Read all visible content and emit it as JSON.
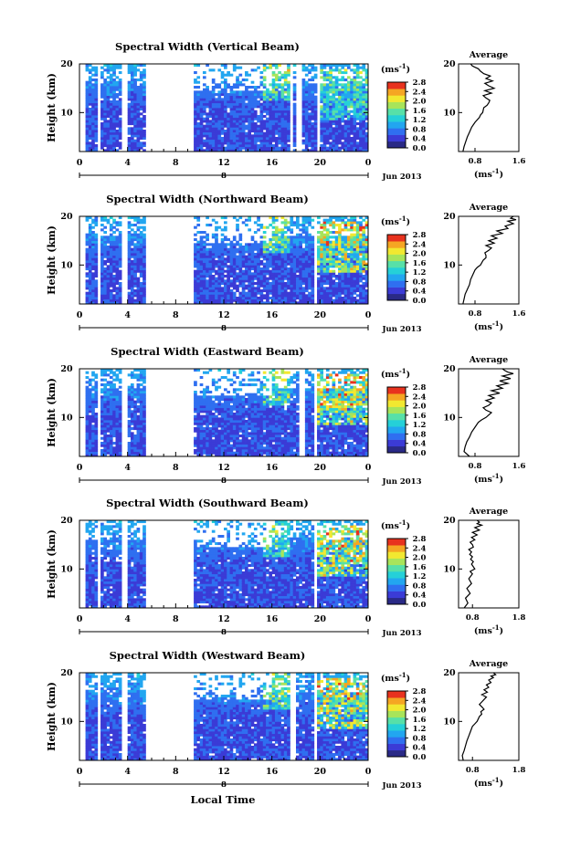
{
  "figure": {
    "xaxis_title": "Local Time",
    "colorbar_unit_label": "(ms",
    "unit_superscript": "-1",
    "profile_title": "Average"
  },
  "colors": {
    "colormap": [
      "#2a2a86",
      "#3b3bd6",
      "#2f6ff0",
      "#22a6f0",
      "#25d0d8",
      "#57e0a8",
      "#a8e45a",
      "#f2e830",
      "#f5a623",
      "#e8321e"
    ]
  },
  "chart_data": [
    {
      "type": "heatmap",
      "title": "Spectral Width (Vertical Beam)",
      "ylabel": "Height (km)",
      "xlabel": "",
      "x_ticks": [
        "0",
        "4",
        "8",
        "12",
        "16",
        "20",
        "0"
      ],
      "x_bottom_mark": "8",
      "date_label": "Jun 2013",
      "y_ticks": [
        "20",
        "10"
      ],
      "ylim": [
        2,
        20
      ],
      "x_range_hours": [
        0,
        24
      ],
      "colorbar_ticks": [
        "2.8",
        "2.4",
        "2.0",
        "1.6",
        "1.2",
        "0.8",
        "0.4",
        "0.0"
      ],
      "colorbar_range": [
        0.0,
        2.8
      ],
      "data_gaps_hours": [
        [
          0,
          0.3
        ],
        [
          1.4,
          1.6
        ],
        [
          3.4,
          4.0
        ],
        [
          5.3,
          9.3
        ],
        [
          17.3,
          17.6
        ],
        [
          17.8,
          18.3
        ],
        [
          19.6,
          19.9
        ]
      ],
      "profile": {
        "title": "Average",
        "xlabel": "(ms",
        "x_ticks": [
          "0.8",
          "1.6"
        ],
        "xlim": [
          0.5,
          1.6
        ],
        "y_ticks": [
          "20",
          "10"
        ],
        "ylim": [
          2,
          20
        ],
        "x": [
          0.58,
          0.6,
          0.63,
          0.66,
          0.7,
          0.74,
          0.8,
          0.88,
          0.9,
          0.94,
          0.96,
          1.02,
          1.05,
          1.07,
          1.0,
          0.95,
          1.1,
          0.98,
          1.15,
          1.05,
          0.98,
          1.12,
          1.0,
          1.08,
          0.96,
          0.9,
          0.86,
          0.8,
          0.75,
          0.72
        ],
        "y": [
          2,
          3,
          4,
          5,
          6,
          7,
          8,
          9,
          9.5,
          10,
          11,
          11.5,
          12,
          12.5,
          13,
          13.5,
          14,
          14.5,
          15,
          15.5,
          16,
          16.5,
          17,
          17.5,
          18,
          18.5,
          19,
          19.3,
          19.6,
          20
        ]
      }
    },
    {
      "type": "heatmap",
      "title": "Spectral Width (Northward Beam)",
      "ylabel": "Height (km)",
      "xlabel": "",
      "x_ticks": [
        "0",
        "4",
        "8",
        "12",
        "16",
        "20",
        "0"
      ],
      "x_bottom_mark": "8",
      "date_label": "Jun 2013",
      "y_ticks": [
        "20",
        "10"
      ],
      "ylim": [
        2,
        20
      ],
      "x_range_hours": [
        0,
        24
      ],
      "colorbar_ticks": [
        "2.8",
        "2.4",
        "2.0",
        "1.6",
        "1.2",
        "0.8",
        "0.4",
        "0.0"
      ],
      "colorbar_range": [
        0.0,
        2.8
      ],
      "data_gaps_hours": [
        [
          0,
          0.3
        ],
        [
          1.4,
          1.6
        ],
        [
          3.4,
          4.0
        ],
        [
          5.3,
          9.3
        ],
        [
          19.4,
          19.7
        ]
      ],
      "profile": {
        "title": "Average",
        "xlabel": "(ms",
        "x_ticks": [
          "0.8",
          "1.6"
        ],
        "xlim": [
          0.5,
          1.6
        ],
        "y_ticks": [
          "20",
          "10"
        ],
        "ylim": [
          2,
          20
        ],
        "x": [
          0.58,
          0.6,
          0.62,
          0.66,
          0.7,
          0.72,
          0.76,
          0.8,
          0.84,
          0.9,
          0.95,
          1.0,
          1.0,
          0.98,
          1.05,
          1.1,
          1.0,
          1.15,
          1.05,
          1.2,
          1.1,
          1.3,
          1.2,
          1.4,
          1.35,
          1.5,
          1.4,
          1.55,
          1.45,
          1.5
        ],
        "y": [
          2,
          3,
          4,
          5,
          6,
          7,
          8,
          9,
          9.5,
          10,
          11,
          11.5,
          12,
          12.5,
          13,
          13.5,
          14,
          14.5,
          15,
          15.5,
          16,
          16.5,
          17,
          17.5,
          18,
          18.5,
          19,
          19.3,
          19.6,
          20
        ]
      }
    },
    {
      "type": "heatmap",
      "title": "Spectral Width (Eastward Beam)",
      "ylabel": "Height (km)",
      "xlabel": "",
      "x_ticks": [
        "0",
        "4",
        "8",
        "12",
        "16",
        "20",
        "0"
      ],
      "x_bottom_mark": "8",
      "date_label": "Jun 2013",
      "y_ticks": [
        "20",
        "10"
      ],
      "ylim": [
        2,
        20
      ],
      "x_range_hours": [
        0,
        24
      ],
      "colorbar_ticks": [
        "2.8",
        "2.4",
        "2.0",
        "1.6",
        "1.2",
        "0.8",
        "0.4",
        "0.0"
      ],
      "colorbar_range": [
        0.0,
        2.8
      ],
      "data_gaps_hours": [
        [
          0,
          0.3
        ],
        [
          1.4,
          1.6
        ],
        [
          3.4,
          4.0
        ],
        [
          5.3,
          9.3
        ],
        [
          18.1,
          18.6
        ],
        [
          19.4,
          19.7
        ]
      ],
      "profile": {
        "title": "Average",
        "xlabel": "(ms",
        "x_ticks": [
          "0.8",
          "1.6"
        ],
        "xlim": [
          0.5,
          1.6
        ],
        "y_ticks": [
          "20",
          "10"
        ],
        "ylim": [
          2,
          20
        ],
        "x": [
          0.7,
          0.6,
          0.62,
          0.65,
          0.7,
          0.74,
          0.8,
          0.86,
          0.92,
          1.0,
          1.1,
          1.0,
          0.95,
          1.05,
          1.1,
          1.0,
          1.15,
          1.05,
          1.25,
          1.1,
          1.3,
          1.2,
          1.4,
          1.25,
          1.45,
          1.3,
          1.5,
          1.4,
          1.35,
          1.3
        ],
        "y": [
          2,
          3,
          4,
          5,
          6,
          7,
          8,
          9,
          9.5,
          10,
          11,
          11.5,
          12,
          12.5,
          13,
          13.5,
          14,
          14.5,
          15,
          15.5,
          16,
          16.5,
          17,
          17.5,
          18,
          18.5,
          19,
          19.3,
          19.6,
          20
        ]
      }
    },
    {
      "type": "heatmap",
      "title": "Spectral Width (Southward Beam)",
      "ylabel": "Height (km)",
      "xlabel": "",
      "x_ticks": [
        "0",
        "4",
        "8",
        "12",
        "16",
        "20",
        "0"
      ],
      "x_bottom_mark": "8",
      "date_label": "Jun 2013",
      "y_ticks": [
        "20",
        "10"
      ],
      "ylim": [
        2,
        20
      ],
      "x_range_hours": [
        0,
        24
      ],
      "colorbar_ticks": [
        "2.8",
        "2.4",
        "2.0",
        "1.6",
        "1.2",
        "0.8",
        "0.4",
        "0.0"
      ],
      "colorbar_range": [
        0.0,
        2.8
      ],
      "data_gaps_hours": [
        [
          0,
          0.3
        ],
        [
          1.4,
          1.6
        ],
        [
          3.4,
          4.0
        ],
        [
          5.3,
          9.3
        ],
        [
          19.4,
          19.7
        ]
      ],
      "profile": {
        "title": "Average",
        "xlabel": "(ms",
        "x_ticks": [
          "0.8",
          "1.8"
        ],
        "xlim": [
          0.5,
          1.8
        ],
        "y_ticks": [
          "20",
          "10"
        ],
        "ylim": [
          2,
          20
        ],
        "x": [
          0.62,
          0.7,
          0.65,
          0.75,
          0.68,
          0.78,
          0.72,
          0.8,
          0.75,
          0.85,
          0.78,
          0.82,
          0.76,
          0.8,
          0.74,
          0.78,
          0.72,
          0.82,
          0.8,
          0.75,
          0.85,
          0.78,
          0.9,
          0.8,
          0.95,
          0.85,
          1.0,
          0.9,
          0.95,
          0.9
        ],
        "y": [
          2,
          3,
          4,
          5,
          6,
          7,
          8,
          9,
          9.5,
          10,
          11,
          11.5,
          12,
          12.5,
          13,
          13.5,
          14,
          14.5,
          15,
          15.5,
          16,
          16.5,
          17,
          17.5,
          18,
          18.5,
          19,
          19.3,
          19.6,
          20
        ]
      }
    },
    {
      "type": "heatmap",
      "title": "Spectral Width (Westward Beam)",
      "ylabel": "Height (km)",
      "xlabel": "Local Time",
      "x_ticks": [
        "0",
        "4",
        "8",
        "12",
        "16",
        "20",
        "0"
      ],
      "x_bottom_mark": "8",
      "date_label": "Jun 2013",
      "y_ticks": [
        "20",
        "10"
      ],
      "ylim": [
        2,
        20
      ],
      "x_range_hours": [
        0,
        24
      ],
      "colorbar_ticks": [
        "2.8",
        "2.4",
        "2.0",
        "1.6",
        "1.2",
        "0.8",
        "0.4",
        "0.0"
      ],
      "colorbar_range": [
        0.0,
        2.8
      ],
      "data_gaps_hours": [
        [
          0,
          0.3
        ],
        [
          1.4,
          1.6
        ],
        [
          3.4,
          4.0
        ],
        [
          5.3,
          9.3
        ],
        [
          17.5,
          17.8
        ],
        [
          19.4,
          19.7
        ]
      ],
      "profile": {
        "title": "Average",
        "xlabel": "(ms",
        "x_ticks": [
          "0.8",
          "1.8"
        ],
        "xlim": [
          0.5,
          1.8
        ],
        "y_ticks": [
          "20",
          "10"
        ],
        "ylim": [
          2,
          20
        ],
        "x": [
          0.6,
          0.58,
          0.62,
          0.65,
          0.68,
          0.72,
          0.76,
          0.8,
          0.85,
          0.9,
          0.95,
          1.0,
          0.98,
          1.05,
          1.0,
          0.95,
          1.0,
          1.05,
          1.1,
          1.0,
          1.12,
          1.05,
          1.15,
          1.1,
          1.2,
          1.15,
          1.25,
          1.2,
          1.3,
          1.25
        ],
        "y": [
          2,
          3,
          4,
          5,
          6,
          7,
          8,
          9,
          9.5,
          10,
          11,
          11.5,
          12,
          12.5,
          13,
          13.5,
          14,
          14.5,
          15,
          15.5,
          16,
          16.5,
          17,
          17.5,
          18,
          18.5,
          19,
          19.3,
          19.6,
          20
        ]
      }
    }
  ]
}
